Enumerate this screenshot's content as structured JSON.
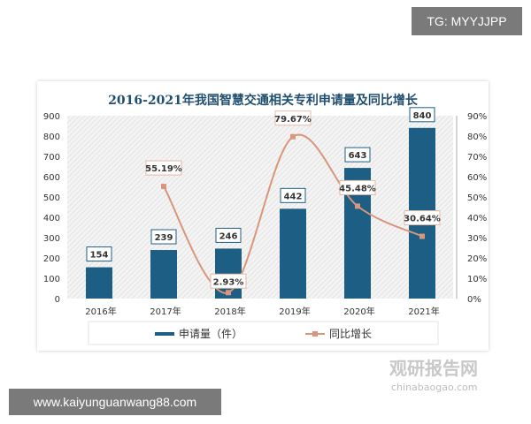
{
  "watermark_top": "TG: MYYJJPP",
  "watermark_bottom": "www.kaiyunguanwang88.com",
  "logo": {
    "cn": "观研报告网",
    "en": "chinabaogao.com"
  },
  "colors": {
    "bar": "#1d5e84",
    "line": "#d9967a",
    "title": "#1f4e6e"
  },
  "chart_data": {
    "type": "bar+line",
    "title": "2016-2021年我国智慧交通相关专利申请量及同比增长",
    "categories": [
      "2016年",
      "2017年",
      "2018年",
      "2019年",
      "2020年",
      "2021年"
    ],
    "series": [
      {
        "name": "申请量（件）",
        "type": "bar",
        "axis": "left",
        "values": [
          154,
          239,
          246,
          442,
          643,
          840
        ],
        "labels": [
          "154",
          "239",
          "246",
          "442",
          "643",
          "840"
        ]
      },
      {
        "name": "同比增长",
        "type": "line",
        "axis": "right",
        "values": [
          null,
          55.19,
          2.93,
          79.67,
          45.48,
          30.64
        ],
        "labels": [
          "",
          "55.19%",
          "2.93%",
          "79.67%",
          "45.48%",
          "30.64%"
        ]
      }
    ],
    "yleft": {
      "range": [
        0,
        900
      ],
      "ticks": [
        "0",
        "100",
        "200",
        "300",
        "400",
        "500",
        "600",
        "700",
        "800",
        "900"
      ]
    },
    "yright": {
      "range": [
        0,
        90
      ],
      "ticks": [
        "0%",
        "10%",
        "20%",
        "30%",
        "40%",
        "50%",
        "60%",
        "70%",
        "80%",
        "90%"
      ]
    },
    "legend_placement": "bottom",
    "grid": false
  }
}
